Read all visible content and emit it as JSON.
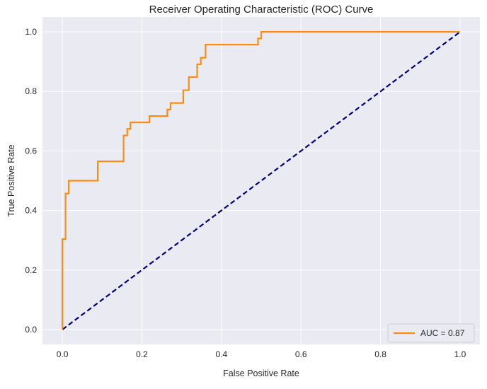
{
  "chart_data": {
    "type": "line",
    "title": "Receiver Operating Characteristic (ROC) Curve",
    "xlabel": "False Positive Rate",
    "ylabel": "True Positive Rate",
    "xlim": [
      -0.05,
      1.05
    ],
    "ylim": [
      -0.05,
      1.05
    ],
    "x_ticks": [
      "0.0",
      "0.2",
      "0.4",
      "0.6",
      "0.8",
      "1.0"
    ],
    "y_ticks": [
      "0.0",
      "0.2",
      "0.4",
      "0.6",
      "0.8",
      "1.0"
    ],
    "grid": true,
    "legend_position": "lower-right",
    "series": [
      {
        "name": "AUC = 0.87",
        "color": "#ff8c0f",
        "style": "solid",
        "x": [
          0.0,
          0.0,
          0.008,
          0.008,
          0.016,
          0.016,
          0.024,
          0.024,
          0.089,
          0.089,
          0.154,
          0.154,
          0.163,
          0.163,
          0.171,
          0.171,
          0.219,
          0.219,
          0.264,
          0.264,
          0.272,
          0.272,
          0.304,
          0.304,
          0.318,
          0.318,
          0.339,
          0.339,
          0.348,
          0.348,
          0.36,
          0.36,
          0.492,
          0.492,
          0.5,
          0.5,
          1.0
        ],
        "y": [
          0.0,
          0.304,
          0.304,
          0.457,
          0.457,
          0.5,
          0.5,
          0.5,
          0.5,
          0.565,
          0.565,
          0.652,
          0.652,
          0.674,
          0.674,
          0.696,
          0.696,
          0.717,
          0.717,
          0.739,
          0.739,
          0.761,
          0.761,
          0.804,
          0.804,
          0.848,
          0.848,
          0.891,
          0.891,
          0.913,
          0.913,
          0.957,
          0.957,
          0.978,
          0.978,
          1.0,
          1.0
        ]
      },
      {
        "color": "#000080",
        "style": "dashed",
        "x": [
          0.0,
          1.0
        ],
        "y": [
          0.0,
          1.0
        ]
      }
    ]
  },
  "colors": {
    "plot_background": "#eaeaf2",
    "grid": "#ffffff"
  }
}
